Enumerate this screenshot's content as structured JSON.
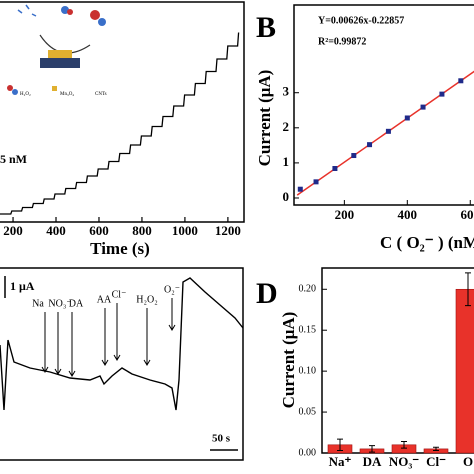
{
  "chart_data": [
    {
      "type": "staircase",
      "x_label": "Time (s)",
      "annotation": "5 nM",
      "inset_labels": [
        "H₂O₂",
        "Mn₃O₄",
        "CNTs"
      ],
      "xlim": [
        130,
        1275
      ],
      "xticks": [
        200,
        400,
        600,
        800,
        1000,
        1200
      ]
    },
    {
      "type": "scatter",
      "panel_label": "B",
      "equation": "Y=0.00626x-0.22857",
      "r2": "R²=0.99872",
      "x_label": "C ( O₂⁻ ) (nM",
      "y_label": "Current (μA)",
      "xlim": [
        40,
        650
      ],
      "xticks": [
        200,
        400,
        600
      ],
      "ylim": [
        -0.2,
        5.5
      ],
      "yticks": [
        0,
        1,
        2,
        3
      ],
      "x": [
        60,
        110,
        170,
        230,
        280,
        340,
        400,
        450,
        510,
        570
      ],
      "values": [
        0.25,
        0.46,
        0.84,
        1.21,
        1.52,
        1.9,
        2.28,
        2.59,
        2.96,
        3.34
      ],
      "color": "#1f2a8a",
      "line_color": "#e8322a",
      "fit_line": {
        "x": [
          50,
          640
        ],
        "values": [
          0.08,
          3.78
        ]
      }
    },
    {
      "type": "trace",
      "annotations": [
        "Na",
        "NO₃⁻",
        "DA",
        "AA",
        "Cl⁻",
        "H₂O₂",
        "O₂⁻"
      ],
      "scale_y": "1 μA",
      "scale_x": "50 s"
    },
    {
      "type": "bar",
      "panel_label": "D",
      "y_label": "Current (μA)",
      "categories": [
        "Na⁺",
        "DA",
        "NO₃⁻",
        "Cl⁻",
        "O"
      ],
      "values": [
        0.01,
        0.005,
        0.01,
        0.005,
        0.2
      ],
      "errors": [
        0.007,
        0.004,
        0.004,
        0.002,
        0.02
      ],
      "ylim": [
        0,
        0.226
      ],
      "yticks": [
        {
          "value": 0,
          "label": "0.00"
        },
        {
          "value": 0.05,
          "label": "0.05"
        },
        {
          "value": 0.1,
          "label": "0.10"
        },
        {
          "value": 0.15,
          "label": "0.15"
        },
        {
          "value": 0.2,
          "label": "0.20"
        }
      ],
      "color": "#e8322a"
    }
  ]
}
